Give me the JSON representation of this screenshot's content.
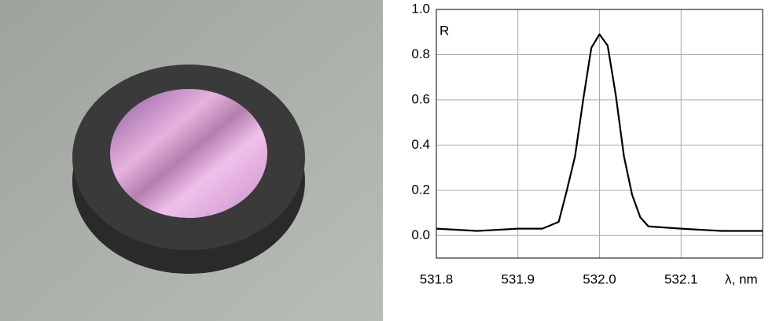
{
  "chart_data": {
    "type": "line",
    "ylabel": "R",
    "xlabel": "λ, nm",
    "x": [
      531.8,
      531.85,
      531.9,
      531.93,
      531.95,
      531.96,
      531.97,
      531.98,
      531.99,
      532.0,
      532.01,
      532.02,
      532.03,
      532.04,
      532.05,
      532.06,
      532.1,
      532.15,
      532.2
    ],
    "values": [
      0.03,
      0.02,
      0.03,
      0.03,
      0.06,
      0.2,
      0.35,
      0.6,
      0.83,
      0.89,
      0.84,
      0.62,
      0.35,
      0.18,
      0.08,
      0.04,
      0.03,
      0.02,
      0.02
    ],
    "color": "#000000",
    "xlim": [
      531.8,
      532.2
    ],
    "xticks": [
      531.8,
      531.9,
      {
        "value": 532.0,
        "label": "532.0"
      },
      532.1
    ],
    "ylim": [
      -0.1,
      1.0
    ],
    "yticks": [
      {
        "value": 0,
        "label": "0.0"
      },
      0.2,
      0.4,
      0.6,
      0.8,
      {
        "value": 1,
        "label": "1.0"
      }
    ],
    "grid": true
  }
}
